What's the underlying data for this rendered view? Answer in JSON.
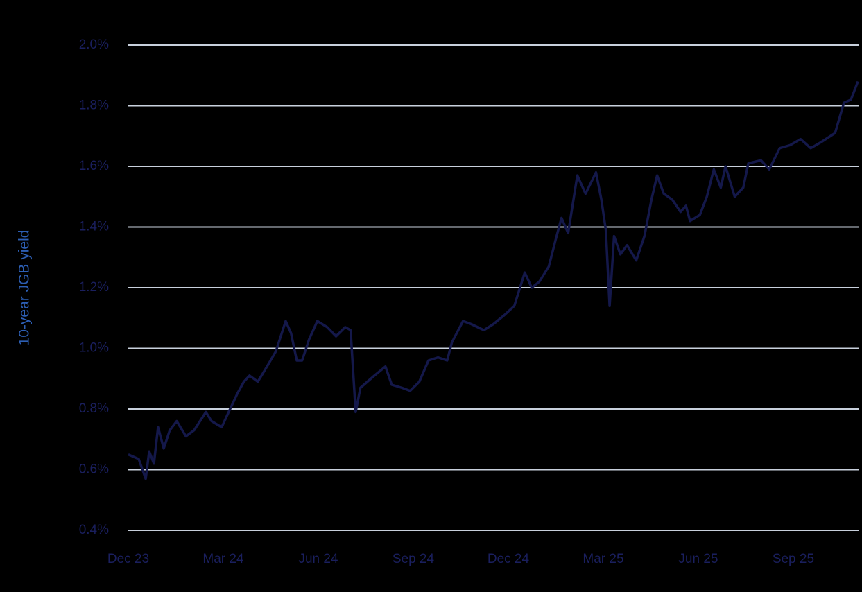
{
  "chart_data": {
    "type": "line",
    "y_label": "10-year JGB yield",
    "x": [
      0,
      0.33,
      0.55,
      0.66,
      0.81,
      0.94,
      1.12,
      1.31,
      1.53,
      1.82,
      2.08,
      2.45,
      2.63,
      2.95,
      3.17,
      3.44,
      3.65,
      3.83,
      4.09,
      4.38,
      4.66,
      4.97,
      5.14,
      5.32,
      5.49,
      5.71,
      5.97,
      6.28,
      6.56,
      6.85,
      7.02,
      7.18,
      7.33,
      7.55,
      7.77,
      8.12,
      8.32,
      8.64,
      8.9,
      9.19,
      9.48,
      9.78,
      10.07,
      10.22,
      10.57,
      10.83,
      11.23,
      11.53,
      11.88,
      12.19,
      12.52,
      12.74,
      12.98,
      13.28,
      13.5,
      13.68,
      13.89,
      14.18,
      14.44,
      14.77,
      14.94,
      15.08,
      15.2,
      15.34,
      15.54,
      15.75,
      16.04,
      16.3,
      16.52,
      16.7,
      16.91,
      17.18,
      17.44,
      17.61,
      17.74,
      18.05,
      18.27,
      18.49,
      18.71,
      18.86,
      19.15,
      19.42,
      19.58,
      19.98,
      20.24,
      20.57,
      20.9,
      21.23,
      21.55,
      21.88,
      22.32,
      22.6,
      22.82,
      23.04
    ],
    "series": [
      {
        "name": "10-year JGB yield",
        "color": "#14184a",
        "values": [
          0.65,
          0.635,
          0.57,
          0.66,
          0.62,
          0.74,
          0.67,
          0.73,
          0.76,
          0.71,
          0.73,
          0.79,
          0.76,
          0.74,
          0.79,
          0.85,
          0.89,
          0.91,
          0.89,
          0.94,
          0.99,
          1.09,
          1.05,
          0.96,
          0.96,
          1.03,
          1.09,
          1.07,
          1.04,
          1.07,
          1.06,
          0.79,
          0.87,
          0.89,
          0.91,
          0.94,
          0.88,
          0.87,
          0.86,
          0.89,
          0.96,
          0.97,
          0.96,
          1.02,
          1.09,
          1.08,
          1.06,
          1.08,
          1.11,
          1.14,
          1.25,
          1.2,
          1.22,
          1.27,
          1.36,
          1.43,
          1.38,
          1.57,
          1.51,
          1.58,
          1.49,
          1.39,
          1.14,
          1.37,
          1.31,
          1.34,
          1.29,
          1.37,
          1.49,
          1.57,
          1.51,
          1.49,
          1.45,
          1.47,
          1.42,
          1.44,
          1.5,
          1.59,
          1.53,
          1.6,
          1.5,
          1.53,
          1.61,
          1.62,
          1.59,
          1.66,
          1.67,
          1.69,
          1.66,
          1.68,
          1.71,
          1.81,
          1.82,
          1.88
        ]
      }
    ],
    "xlim": [
      0,
      23.06
    ],
    "xticks": [
      {
        "value": 0,
        "label": "Dec 23"
      },
      {
        "value": 3,
        "label": "Mar 24"
      },
      {
        "value": 6,
        "label": "Jun 24"
      },
      {
        "value": 9,
        "label": "Sep 24"
      },
      {
        "value": 12,
        "label": "Dec 24"
      },
      {
        "value": 15,
        "label": "Mar 25"
      },
      {
        "value": 18,
        "label": "Jun 25"
      },
      {
        "value": 21,
        "label": "Sep 25"
      }
    ],
    "ylim": [
      0.4,
      2.0
    ],
    "yticks": [
      {
        "value": 0.4,
        "label": "0.4%"
      },
      {
        "value": 0.6,
        "label": "0.6%"
      },
      {
        "value": 0.8,
        "label": "0.8%"
      },
      {
        "value": 1.0,
        "label": "1.0%"
      },
      {
        "value": 1.2,
        "label": "1.2%"
      },
      {
        "value": 1.4,
        "label": "1.4%"
      },
      {
        "value": 1.6,
        "label": "1.6%"
      },
      {
        "value": 1.8,
        "label": "1.8%"
      },
      {
        "value": 2.0,
        "label": "2.0%"
      }
    ],
    "grid": true
  }
}
